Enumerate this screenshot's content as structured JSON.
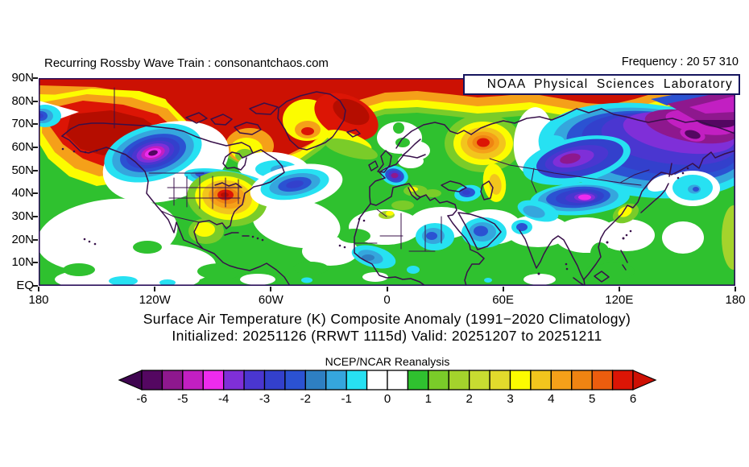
{
  "header": {
    "watermark": "Recurring Rossby Wave Train : consonantchaos.com",
    "frequency": "Frequency : 20 57 310",
    "agency_box": "NOAA Physical Sciences Laboratory"
  },
  "titles": {
    "line1": "Surface Air Temperature (K) Composite Anomaly (1991−2020 Climatology)",
    "line2": "Initialized: 20251126 (RRWT 1115d) Valid: 20251207 to 20251211",
    "colorbar_label": "NCEP/NCAR Reanalysis"
  },
  "axes": {
    "lat_labels": [
      "90N",
      "80N",
      "70N",
      "60N",
      "50N",
      "40N",
      "30N",
      "20N",
      "10N",
      "EQ"
    ],
    "lon_labels": [
      "180",
      "120W",
      "60W",
      "0",
      "60E",
      "120E",
      "180"
    ]
  },
  "chart_data": {
    "type": "heatmap",
    "title": "Surface Air Temperature (K) Composite Anomaly (1991−2020 Climatology)",
    "subtitle": "Initialized: 20251126 (RRWT 1115d) Valid: 20251207 to 20251211",
    "dataset": "NCEP/NCAR Reanalysis",
    "units": "K",
    "projection": "equirectangular",
    "lat_range_deg": [
      0,
      90
    ],
    "lon_range_deg": [
      -180,
      180
    ],
    "lat_ticks": [
      "90N",
      "80N",
      "70N",
      "60N",
      "50N",
      "40N",
      "30N",
      "20N",
      "10N",
      "EQ"
    ],
    "lon_ticks": [
      "180",
      "120W",
      "60W",
      "0",
      "60E",
      "120E",
      "180"
    ],
    "grid": false,
    "colorbar": {
      "orientation": "horizontal",
      "tick_labels": [
        "-6",
        "-5",
        "-4",
        "-3",
        "-2",
        "-1",
        "0",
        "1",
        "2",
        "3",
        "4",
        "5",
        "6"
      ],
      "cells_per_unit": 2,
      "cell_colors": [
        "#540761",
        "#8E188E",
        "#C21FC2",
        "#EE2BEE",
        "#7F2FD8",
        "#4A36D0",
        "#3340CC",
        "#2B52D2",
        "#2E7FC2",
        "#35A6DD",
        "#27E1F2",
        "#FFFFFF",
        "#FFFFFF",
        "#2FC12F",
        "#7ACC29",
        "#A4D32C",
        "#C8DC31",
        "#E2DA2C",
        "#FCFC00",
        "#F2C51D",
        "#F5A019",
        "#EF8412",
        "#EC5D0E",
        "#DC1505"
      ],
      "under_arrow_color": "#3F0550",
      "over_arrow_color": "#CE1004"
    },
    "anomaly_features": [
      {
        "region": "Arctic circumpolar band 80-90N",
        "sign": "warm",
        "peak_value_K": 6.5
      },
      {
        "region": "Alaska / Yukon",
        "sign": "warm",
        "peak_value_K": 6
      },
      {
        "region": "Northern Canada / Canadian Archipelago / Hudson Bay",
        "sign": "warm",
        "peak_value_K": 6.5
      },
      {
        "region": "East Greenland / Iceland",
        "sign": "warm",
        "peak_value_K": 6
      },
      {
        "region": "British Columbia / Western Canada",
        "sign": "cold",
        "peak_value_K": -6
      },
      {
        "region": "Central United States plains",
        "sign": "warm",
        "peak_value_K": 6
      },
      {
        "region": "Central North Atlantic 40-45N",
        "sign": "cold",
        "peak_value_K": -3
      },
      {
        "region": "France / Iberia",
        "sign": "cold",
        "peak_value_K": -5
      },
      {
        "region": "Western Russia",
        "sign": "warm",
        "peak_value_K": 6
      },
      {
        "region": "Siberia / Northeast Asia",
        "sign": "cold",
        "peak_value_K": -6
      },
      {
        "region": "Mongolia / Northern China",
        "sign": "cold",
        "peak_value_K": -4.5
      },
      {
        "region": "Middle East and Sahara",
        "sign": "cold",
        "peak_value_K": -2.5
      },
      {
        "region": "Northwest Pacific east of Japan",
        "sign": "cold",
        "peak_value_K": -2
      },
      {
        "region": "Tropics",
        "sign": "neutral",
        "peak_value_K": 0.5
      }
    ]
  }
}
